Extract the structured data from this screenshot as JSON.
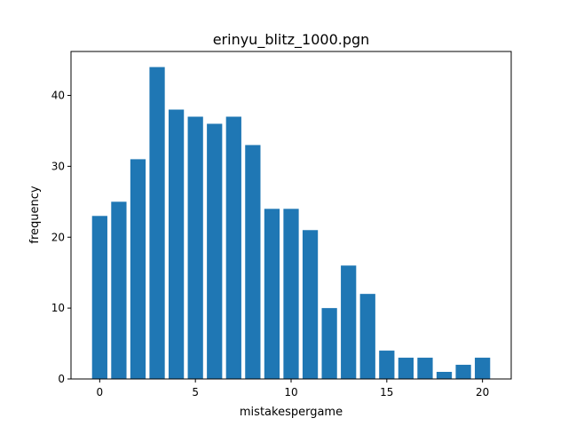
{
  "chart_data": {
    "type": "bar",
    "title": "erinyu_blitz_1000.pgn",
    "xlabel": "mistakespergame",
    "ylabel": "frequency",
    "categories": [
      0,
      1,
      2,
      3,
      4,
      5,
      6,
      7,
      8,
      9,
      10,
      11,
      12,
      13,
      14,
      15,
      16,
      17,
      18,
      19,
      20
    ],
    "values": [
      23,
      25,
      31,
      44,
      38,
      37,
      36,
      37,
      33,
      24,
      24,
      21,
      10,
      16,
      12,
      4,
      3,
      3,
      1,
      2,
      3
    ],
    "xlim": [
      -1.5,
      21.5
    ],
    "ylim": [
      0,
      46.2
    ],
    "xticks": [
      0,
      5,
      10,
      15,
      20
    ],
    "yticks": [
      0,
      10,
      20,
      30,
      40
    ],
    "bar_color": "#1f77b4",
    "grid": false
  }
}
